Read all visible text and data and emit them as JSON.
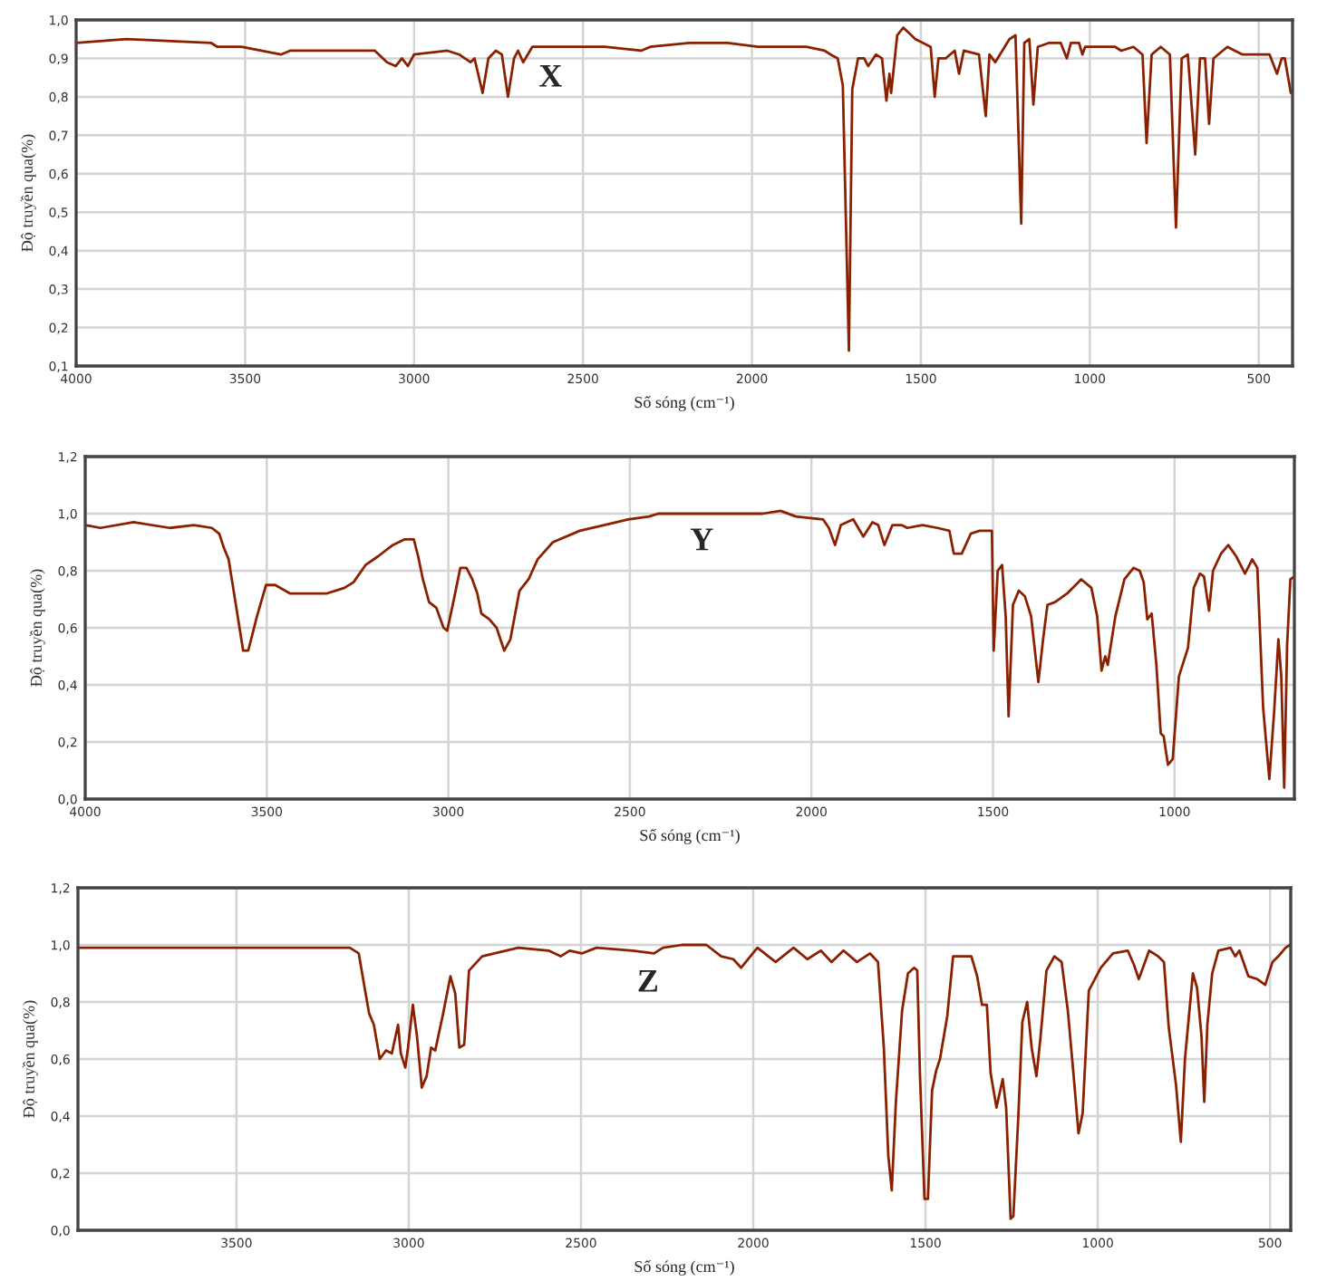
{
  "chart_data": [
    {
      "type": "line",
      "xlabel": "Số sóng (cm⁻¹)",
      "ylabel": "Độ truyền qua(%)",
      "annotations": [
        "X"
      ],
      "grid": true,
      "xlim": [
        4000,
        400
      ],
      "xticks": [
        4000,
        3500,
        3000,
        2500,
        2000,
        1500,
        1000,
        500
      ],
      "ylim": [
        0.1,
        1.0
      ],
      "yticks": [
        {
          "value": 0.1,
          "label": "0,1"
        },
        {
          "value": 0.2,
          "label": "0,2"
        },
        {
          "value": 0.3,
          "label": "0,3"
        },
        {
          "value": 0.4,
          "label": "0,4"
        },
        {
          "value": 0.5,
          "label": "0,5"
        },
        {
          "value": 0.6,
          "label": "0,6"
        },
        {
          "value": 0.7,
          "label": "0,7"
        },
        {
          "value": 0.8,
          "label": "0,8"
        },
        {
          "value": 0.9,
          "label": "0,9"
        },
        {
          "value": 1.0,
          "label": "1,0"
        }
      ],
      "series": [
        {
          "color": "#8b2000",
          "x": [
            4000,
            3851,
            3600,
            3582,
            3511,
            3394,
            3367,
            3116,
            3080,
            3054,
            3036,
            3018,
            3000,
            2901,
            2866,
            2833,
            2821,
            2797,
            2780,
            2758,
            2740,
            2722,
            2704,
            2692,
            2677,
            2650,
            2435,
            2328,
            2301,
            2185,
            2072,
            1982,
            1839,
            1785,
            1767,
            1746,
            1731,
            1713,
            1703,
            1686,
            1668,
            1656,
            1633,
            1615,
            1602,
            1593,
            1588,
            1570,
            1552,
            1516,
            1471,
            1459,
            1448,
            1427,
            1400,
            1387,
            1373,
            1328,
            1308,
            1297,
            1280,
            1238,
            1220,
            1203,
            1194,
            1179,
            1167,
            1154,
            1122,
            1086,
            1068,
            1056,
            1032,
            1022,
            1014,
            925,
            907,
            871,
            844,
            832,
            817,
            790,
            763,
            745,
            728,
            710,
            688,
            674,
            659,
            647,
            634,
            593,
            548,
            468,
            446,
            432,
            423,
            405
          ],
          "values": [
            0.94,
            0.95,
            0.94,
            0.93,
            0.93,
            0.91,
            0.92,
            0.92,
            0.89,
            0.88,
            0.9,
            0.88,
            0.91,
            0.92,
            0.91,
            0.89,
            0.9,
            0.81,
            0.9,
            0.92,
            0.91,
            0.8,
            0.9,
            0.92,
            0.89,
            0.93,
            0.93,
            0.92,
            0.93,
            0.94,
            0.94,
            0.93,
            0.93,
            0.92,
            0.91,
            0.9,
            0.83,
            0.14,
            0.82,
            0.9,
            0.9,
            0.88,
            0.91,
            0.9,
            0.79,
            0.86,
            0.81,
            0.96,
            0.98,
            0.95,
            0.93,
            0.8,
            0.9,
            0.9,
            0.92,
            0.86,
            0.92,
            0.91,
            0.75,
            0.91,
            0.89,
            0.95,
            0.96,
            0.47,
            0.94,
            0.95,
            0.78,
            0.93,
            0.94,
            0.94,
            0.9,
            0.94,
            0.94,
            0.91,
            0.93,
            0.93,
            0.92,
            0.93,
            0.91,
            0.68,
            0.91,
            0.93,
            0.91,
            0.46,
            0.9,
            0.91,
            0.65,
            0.9,
            0.9,
            0.73,
            0.9,
            0.93,
            0.91,
            0.91,
            0.86,
            0.9,
            0.9,
            0.81
          ]
        }
      ]
    },
    {
      "type": "line",
      "xlabel": "Số sóng (cm⁻¹)",
      "ylabel": "Độ truyền qua(%)",
      "annotations": [
        "Y"
      ],
      "grid": true,
      "xlim": [
        4000,
        670
      ],
      "xticks": [
        4000,
        3500,
        3000,
        2500,
        2000,
        1500,
        1000
      ],
      "ylim": [
        0.0,
        1.2
      ],
      "yticks": [
        {
          "value": 0.0,
          "label": "0,0"
        },
        {
          "value": 0.2,
          "label": "0,2"
        },
        {
          "value": 0.4,
          "label": "0,4"
        },
        {
          "value": 0.6,
          "label": "0,6"
        },
        {
          "value": 0.8,
          "label": "0,8"
        },
        {
          "value": 1.0,
          "label": "1,0"
        },
        {
          "value": 1.2,
          "label": "1,2"
        }
      ],
      "series": [
        {
          "color": "#8b2000",
          "x": [
            4000,
            3958,
            3867,
            3767,
            3701,
            3651,
            3631,
            3618,
            3605,
            3585,
            3565,
            3551,
            3527,
            3502,
            3477,
            3435,
            3402,
            3336,
            3286,
            3261,
            3228,
            3194,
            3153,
            3120,
            3095,
            3083,
            3070,
            3053,
            3033,
            3013,
            3003,
            2983,
            2967,
            2950,
            2934,
            2920,
            2909,
            2887,
            2867,
            2846,
            2829,
            2804,
            2779,
            2754,
            2712,
            2638,
            2571,
            2505,
            2447,
            2422,
            2339,
            2135,
            2085,
            2043,
            1968,
            1952,
            1935,
            1919,
            1885,
            1857,
            1832,
            1816,
            1799,
            1777,
            1752,
            1736,
            1694,
            1653,
            1620,
            1608,
            1586,
            1561,
            1537,
            1512,
            1503,
            1498,
            1487,
            1475,
            1465,
            1457,
            1445,
            1429,
            1412,
            1395,
            1375,
            1362,
            1350,
            1329,
            1296,
            1257,
            1229,
            1213,
            1201,
            1191,
            1184,
            1163,
            1138,
            1113,
            1096,
            1085,
            1075,
            1063,
            1050,
            1038,
            1030,
            1018,
            1005,
            988,
            963,
            947,
            930,
            919,
            905,
            894,
            872,
            852,
            830,
            806,
            786,
            772,
            756,
            739,
            726,
            714,
            706,
            698,
            690,
            681,
            670
          ],
          "values": [
            0.96,
            0.95,
            0.97,
            0.95,
            0.96,
            0.95,
            0.93,
            0.88,
            0.84,
            0.68,
            0.52,
            0.52,
            0.64,
            0.75,
            0.75,
            0.72,
            0.72,
            0.72,
            0.74,
            0.76,
            0.82,
            0.85,
            0.89,
            0.91,
            0.91,
            0.85,
            0.77,
            0.69,
            0.67,
            0.6,
            0.59,
            0.71,
            0.81,
            0.81,
            0.77,
            0.72,
            0.65,
            0.63,
            0.6,
            0.52,
            0.56,
            0.73,
            0.77,
            0.84,
            0.9,
            0.94,
            0.96,
            0.98,
            0.99,
            1.0,
            1.0,
            1.0,
            1.01,
            0.99,
            0.98,
            0.95,
            0.89,
            0.96,
            0.98,
            0.92,
            0.97,
            0.96,
            0.89,
            0.96,
            0.96,
            0.95,
            0.96,
            0.95,
            0.94,
            0.86,
            0.86,
            0.93,
            0.94,
            0.94,
            0.94,
            0.52,
            0.8,
            0.82,
            0.64,
            0.29,
            0.68,
            0.73,
            0.71,
            0.64,
            0.41,
            0.56,
            0.68,
            0.69,
            0.72,
            0.77,
            0.74,
            0.64,
            0.45,
            0.5,
            0.47,
            0.64,
            0.77,
            0.81,
            0.8,
            0.76,
            0.63,
            0.65,
            0.47,
            0.23,
            0.22,
            0.12,
            0.14,
            0.43,
            0.53,
            0.74,
            0.79,
            0.78,
            0.66,
            0.8,
            0.86,
            0.89,
            0.85,
            0.79,
            0.84,
            0.81,
            0.32,
            0.07,
            0.3,
            0.56,
            0.43,
            0.04,
            0.54,
            0.77,
            0.78
          ]
        }
      ]
    },
    {
      "type": "line",
      "xlabel": "Số sóng (cm⁻¹)",
      "ylabel": "Độ truyền qua(%)",
      "annotations": [
        "Z"
      ],
      "grid": true,
      "xlim": [
        3960,
        440
      ],
      "xticks": [
        3500,
        3000,
        2500,
        2000,
        1500,
        1000,
        500
      ],
      "ylim": [
        0.0,
        1.2
      ],
      "yticks": [
        {
          "value": 0.0,
          "label": "0,0"
        },
        {
          "value": 0.2,
          "label": "0,2"
        },
        {
          "value": 0.4,
          "label": "0,4"
        },
        {
          "value": 0.6,
          "label": "0,6"
        },
        {
          "value": 0.8,
          "label": "0,8"
        },
        {
          "value": 1.0,
          "label": "1,0"
        },
        {
          "value": 1.2,
          "label": "1,2"
        }
      ],
      "series": [
        {
          "color": "#8b2000",
          "x": [
            3960,
            3661,
            3171,
            3145,
            3128,
            3115,
            3101,
            3084,
            3066,
            3049,
            3031,
            3023,
            3010,
            3002,
            2988,
            2976,
            2962,
            2948,
            2935,
            2923,
            2900,
            2879,
            2865,
            2853,
            2839,
            2825,
            2787,
            2682,
            2594,
            2559,
            2533,
            2498,
            2455,
            2350,
            2288,
            2262,
            2206,
            2136,
            2093,
            2058,
            2035,
            1988,
            1935,
            1883,
            1843,
            1804,
            1773,
            1738,
            1699,
            1661,
            1638,
            1621,
            1608,
            1598,
            1586,
            1568,
            1551,
            1533,
            1524,
            1516,
            1503,
            1493,
            1481,
            1469,
            1458,
            1437,
            1420,
            1367,
            1350,
            1336,
            1322,
            1311,
            1294,
            1276,
            1266,
            1253,
            1245,
            1231,
            1219,
            1205,
            1192,
            1178,
            1166,
            1149,
            1126,
            1105,
            1087,
            1070,
            1056,
            1044,
            1026,
            991,
            956,
            913,
            895,
            881,
            869,
            851,
            825,
            808,
            794,
            773,
            759,
            747,
            724,
            712,
            699,
            691,
            682,
            668,
            650,
            615,
            601,
            589,
            563,
            537,
            514,
            493,
            476,
            455,
            442
          ],
          "values": [
            0.99,
            0.99,
            0.99,
            0.97,
            0.85,
            0.76,
            0.72,
            0.6,
            0.63,
            0.62,
            0.72,
            0.62,
            0.57,
            0.64,
            0.79,
            0.68,
            0.5,
            0.54,
            0.64,
            0.63,
            0.76,
            0.89,
            0.83,
            0.64,
            0.65,
            0.91,
            0.96,
            0.99,
            0.98,
            0.96,
            0.98,
            0.97,
            0.99,
            0.98,
            0.97,
            0.99,
            1.0,
            1.0,
            0.96,
            0.95,
            0.92,
            0.99,
            0.94,
            0.99,
            0.95,
            0.98,
            0.94,
            0.98,
            0.94,
            0.97,
            0.94,
            0.64,
            0.26,
            0.14,
            0.45,
            0.77,
            0.9,
            0.92,
            0.91,
            0.54,
            0.11,
            0.11,
            0.49,
            0.56,
            0.6,
            0.75,
            0.96,
            0.96,
            0.89,
            0.79,
            0.79,
            0.55,
            0.43,
            0.53,
            0.43,
            0.04,
            0.05,
            0.39,
            0.73,
            0.8,
            0.64,
            0.54,
            0.68,
            0.91,
            0.96,
            0.94,
            0.77,
            0.54,
            0.34,
            0.41,
            0.84,
            0.92,
            0.97,
            0.98,
            0.93,
            0.88,
            0.92,
            0.98,
            0.96,
            0.94,
            0.71,
            0.51,
            0.31,
            0.6,
            0.9,
            0.85,
            0.68,
            0.45,
            0.72,
            0.9,
            0.98,
            0.99,
            0.96,
            0.98,
            0.89,
            0.88,
            0.86,
            0.94,
            0.96,
            0.99,
            1.0
          ]
        }
      ]
    }
  ]
}
